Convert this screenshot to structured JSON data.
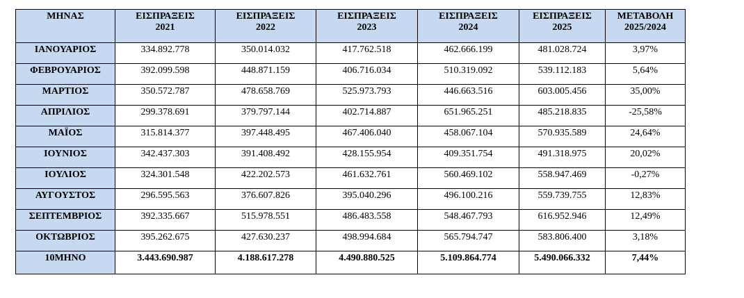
{
  "table": {
    "headers": [
      [
        "ΜΗΝΑΣ"
      ],
      [
        "ΕΙΣΠΡΑΞΕΙΣ",
        "2021"
      ],
      [
        "ΕΙΣΠΡΑΞΕΙΣ",
        "2022"
      ],
      [
        "ΕΙΣΠΡΑΞΕΙΣ",
        "2023"
      ],
      [
        "ΕΙΣΠΡΑΞΕΙΣ",
        "2024"
      ],
      [
        "ΕΙΣΠΡΑΞΕΙΣ",
        "2025"
      ],
      [
        "ΜΕΤΑΒΟΛΗ",
        "2025/2024"
      ]
    ],
    "rows": [
      [
        "ΙΑΝΟΥΑΡΙΟΣ",
        "334.892.778",
        "350.014.032",
        "417.762.518",
        "462.666.199",
        "481.028.724",
        "3,97%"
      ],
      [
        "ΦΕΒΡΟΥΑΡΙΟΣ",
        "392.099.598",
        "448.871.159",
        "406.716.034",
        "510.319.092",
        "539.112.183",
        "5,64%"
      ],
      [
        "ΜΑΡΤΙΟΣ",
        "350.572.787",
        "478.658.769",
        "525.973.793",
        "446.663.516",
        "603.005.456",
        "35,00%"
      ],
      [
        "ΑΠΡΙΛΙΟΣ",
        "299.378.691",
        "379.797.144",
        "402.714.887",
        "651.965.251",
        "485.218.835",
        "-25,58%"
      ],
      [
        "ΜΑΪΟΣ",
        "315.814.377",
        "397.448.495",
        "467.406.040",
        "458.067.104",
        "570.935.589",
        "24,64%"
      ],
      [
        "ΙΟΥΝΙΟΣ",
        "342.437.303",
        "391.408.492",
        "428.155.954",
        "409.351.754",
        "491.318.975",
        "20,02%"
      ],
      [
        "ΙΟΥΛΙΟΣ",
        "324.301.548",
        "422.202.573",
        "461.632.761",
        "560.469.102",
        "558.947.469",
        "-0,27%"
      ],
      [
        "ΑΥΓΟΥΣΤΟΣ",
        "296.595.563",
        "376.607.826",
        "395.040.296",
        "496.100.216",
        "559.739.755",
        "12,83%"
      ],
      [
        "ΣΕΠΤΕΜΒΡΙΟΣ",
        "392.335.667",
        "515.978.551",
        "486.483.558",
        "548.467.793",
        "616.952.946",
        "12,49%"
      ],
      [
        "ΟΚΤΩΒΡΙΟΣ",
        "395.262.675",
        "427.630.237",
        "498.994.684",
        "565.794.747",
        "583.806.400",
        "3,18%"
      ]
    ],
    "total": [
      "10ΜΗΝΟ",
      "3.443.690.987",
      "4.188.617.278",
      "4.490.880.525",
      "5.109.864.774",
      "5.490.066.332",
      "7,44%"
    ]
  },
  "colors": {
    "header_fill": "#c6d9f0",
    "border": "#000000"
  }
}
